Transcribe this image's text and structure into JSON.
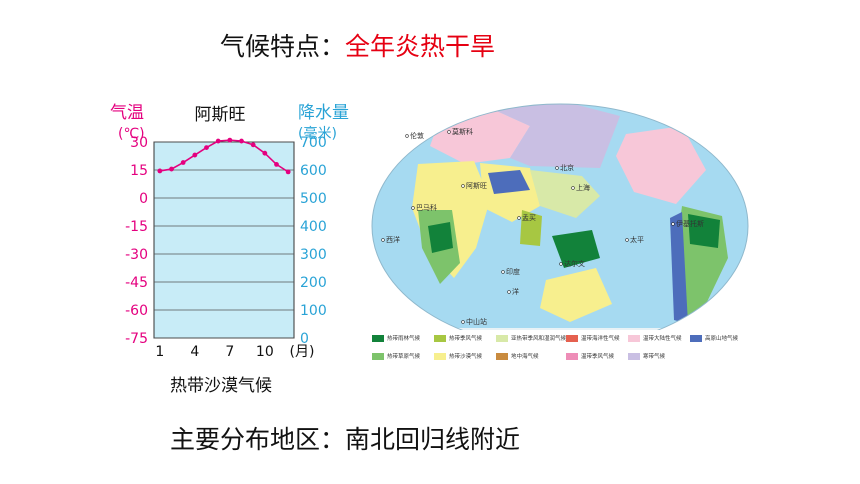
{
  "heading": {
    "prefix": "气候特点：",
    "highlight": "全年炎热干旱",
    "highlight_color": "#e60012"
  },
  "footer": {
    "text": "主要分布地区：南北回归线附近"
  },
  "chart_data": {
    "type": "line",
    "title": "阿斯旺",
    "caption": "热带沙漠气候",
    "left_axis": {
      "label_line1": "气温",
      "label_line2": "(℃)",
      "ticks": [
        30,
        15,
        0,
        -15,
        -30,
        -45,
        -60,
        -75
      ],
      "range": [
        -75,
        30
      ],
      "color": "#e4007f"
    },
    "right_axis": {
      "label_line1": "降水量",
      "label_line2": "(毫米)",
      "ticks": [
        700,
        600,
        500,
        400,
        300,
        200,
        100,
        0
      ],
      "range": [
        0,
        700
      ],
      "color": "#29a3d6"
    },
    "x_ticks": [
      "1",
      "4",
      "7",
      "10",
      "(月)"
    ],
    "months": [
      1,
      2,
      3,
      4,
      5,
      6,
      7,
      8,
      9,
      10,
      11,
      12
    ],
    "temperature": [
      14.5,
      15.5,
      19,
      23,
      27,
      30.5,
      31,
      30.5,
      28.5,
      24,
      18,
      14
    ],
    "precipitation": [
      0,
      0,
      0,
      0,
      0,
      0,
      0,
      0,
      0,
      0,
      0,
      0
    ],
    "line_color": "#e4007f",
    "plot_bg": "#c8ecf7"
  },
  "map": {
    "labels": [
      {
        "key": "london",
        "text": "伦敦"
      },
      {
        "key": "moscow",
        "text": "莫斯科"
      },
      {
        "key": "beijing",
        "text": "北京"
      },
      {
        "key": "shanghai",
        "text": "上海"
      },
      {
        "key": "aswan",
        "text": "阿斯旺"
      },
      {
        "key": "mumbai",
        "text": "孟买"
      },
      {
        "key": "bamako",
        "text": "巴马科"
      },
      {
        "key": "iquitos",
        "text": "伊基托斯"
      },
      {
        "key": "darwin",
        "text": "达尔文"
      },
      {
        "key": "zhongshan",
        "text": "中山站"
      },
      {
        "key": "dongfang",
        "text": "东方站"
      },
      {
        "key": "pacific",
        "text": "太平"
      },
      {
        "key": "atlantic",
        "text": "西洋"
      },
      {
        "key": "indian",
        "text": "印度"
      },
      {
        "key": "ocean",
        "text": "洋"
      }
    ],
    "legend": [
      {
        "label": "热带雨林气候",
        "color": "#12823a"
      },
      {
        "label": "热带季风气候",
        "color": "#a7c742"
      },
      {
        "label": "亚热带季风和湿润气候",
        "color": "#d8e9a8"
      },
      {
        "label": "温带海洋性气候",
        "color": "#e5604f"
      },
      {
        "label": "温带大陆性气候",
        "color": "#f7c7d8"
      },
      {
        "label": "高原山地气候",
        "color": "#4d6dbb"
      },
      {
        "label": "热带草原气候",
        "color": "#7dc36b"
      },
      {
        "label": "热带沙漠气候",
        "color": "#f7ef8e"
      },
      {
        "label": "地中海气候",
        "color": "#c98b3f"
      },
      {
        "label": "温带季风气候",
        "color": "#ee8db7"
      },
      {
        "label": "寒带气候",
        "color": "#c9bfe3"
      }
    ]
  }
}
